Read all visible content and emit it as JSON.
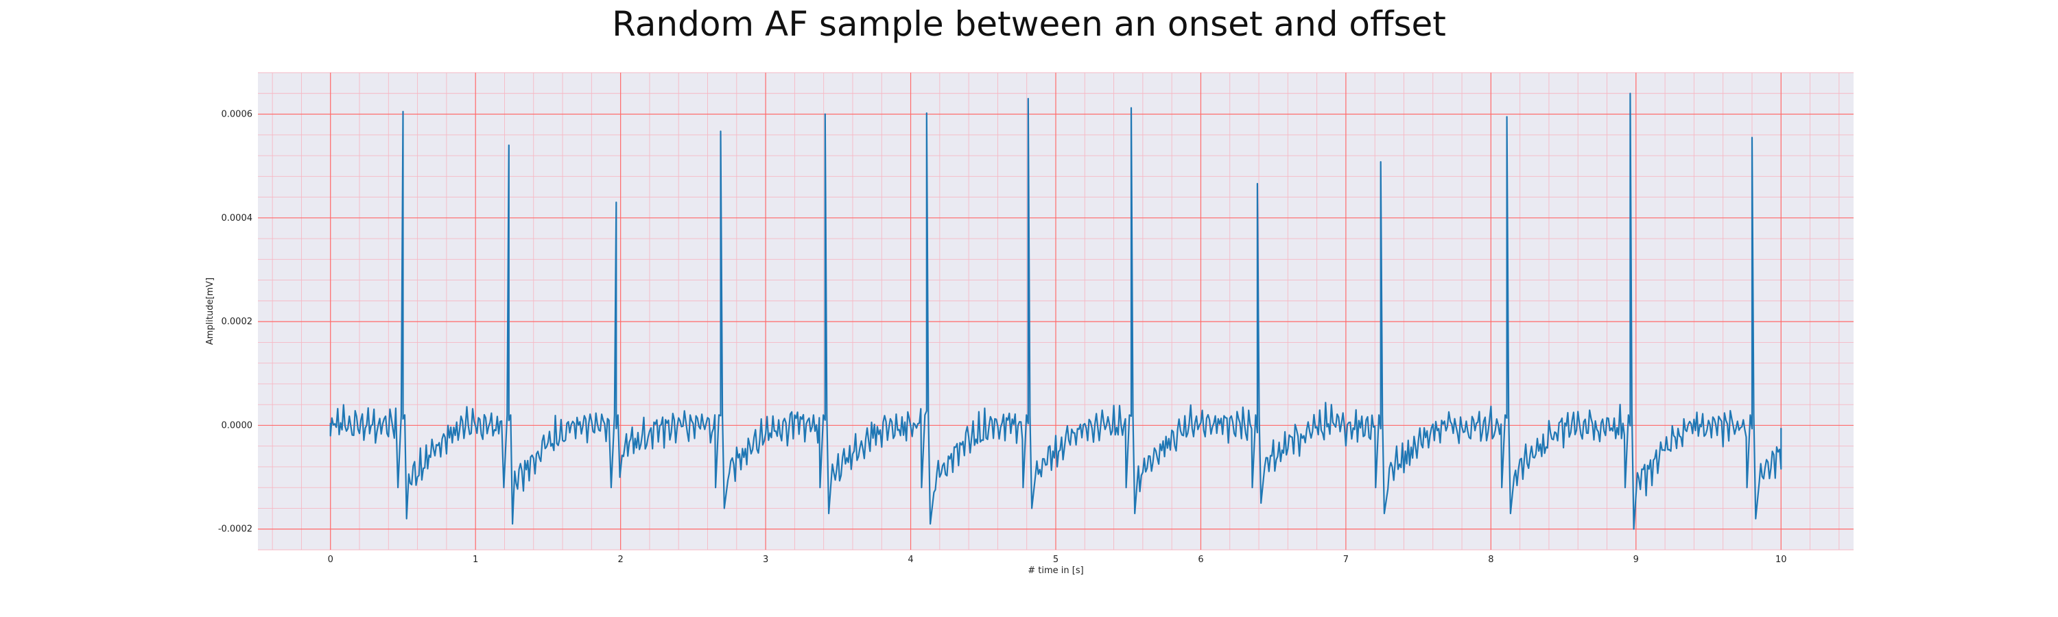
{
  "chart_data": {
    "type": "line",
    "title": "Random AF sample between an onset and offset",
    "xlabel": "# time in [s]",
    "ylabel": "Amplitude[mV]",
    "xlim": [
      -0.5,
      10.5
    ],
    "ylim": [
      -0.00024,
      0.00068
    ],
    "x_ticks": [
      0,
      1,
      2,
      3,
      4,
      5,
      6,
      7,
      8,
      9,
      10
    ],
    "x_tick_labels": [
      "0",
      "1",
      "2",
      "3",
      "4",
      "5",
      "6",
      "7",
      "8",
      "9",
      "10"
    ],
    "y_ticks": [
      -0.0002,
      0.0,
      0.0002,
      0.0004,
      0.0006
    ],
    "y_tick_labels": [
      "-0.0002",
      "0.0000",
      "0.0002",
      "0.0004",
      "0.0006"
    ],
    "grid": true,
    "minor_grid": true,
    "colors": {
      "line": "#1f77b4",
      "plot_background": "#eaeaf2",
      "major_grid": "#ff6b6b",
      "minor_grid": "#f6b8c4"
    },
    "series": [
      {
        "peaks": [
          {
            "t": 0.5,
            "v": 0.000605,
            "trough": -0.00018
          },
          {
            "t": 1.23,
            "v": 0.00054,
            "trough": -0.00019
          },
          {
            "t": 1.97,
            "v": 0.00043,
            "trough": -0.0001
          },
          {
            "t": 2.69,
            "v": 0.000567,
            "trough": -0.00016
          },
          {
            "t": 3.41,
            "v": 0.0006,
            "trough": -0.00017
          },
          {
            "t": 4.11,
            "v": 0.000602,
            "trough": -0.00019
          },
          {
            "t": 4.81,
            "v": 0.00063,
            "trough": -0.00016
          },
          {
            "t": 5.52,
            "v": 0.000612,
            "trough": -0.00017
          },
          {
            "t": 6.39,
            "v": 0.000466,
            "trough": -0.00015
          },
          {
            "t": 7.24,
            "v": 0.000508,
            "trough": -0.00017
          },
          {
            "t": 8.11,
            "v": 0.000595,
            "trough": -0.00017
          },
          {
            "t": 8.96,
            "v": 0.00064,
            "trough": -0.0002
          },
          {
            "t": 9.8,
            "v": 0.000555,
            "trough": -0.00018
          }
        ],
        "start": {
          "t": 0.0,
          "v": -2e-05
        },
        "end": {
          "t": 10.0,
          "v": -5e-06
        }
      }
    ]
  }
}
